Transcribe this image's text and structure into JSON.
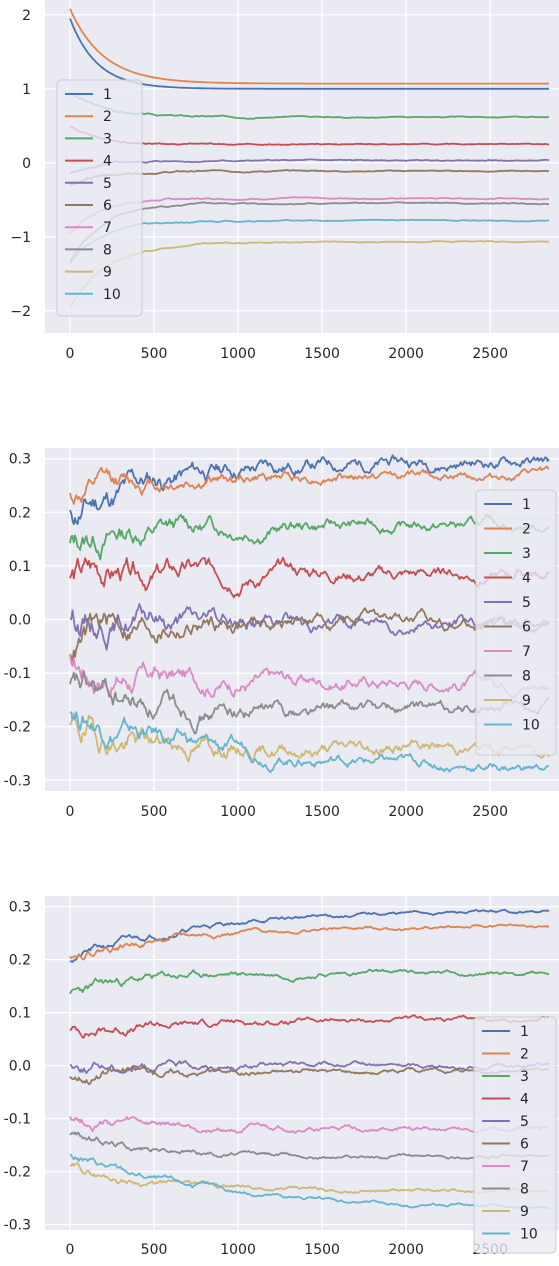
{
  "colors": {
    "background": "#eaeaf2",
    "grid": "#ffffff",
    "series": [
      "#4c72b0",
      "#dd8452",
      "#55a868",
      "#c44e52",
      "#8172b3",
      "#937860",
      "#da8bc3",
      "#8c8c8c",
      "#ccb974",
      "#64b5cd"
    ]
  },
  "chart_data": [
    {
      "type": "line",
      "x_range": [
        0,
        2850
      ],
      "xticks": [
        0,
        500,
        1000,
        1500,
        2000,
        2500
      ],
      "xtick_labels": [
        "0",
        "500",
        "1000",
        "1500",
        "2000",
        "2500"
      ],
      "ylim": [
        -2.3,
        2.2
      ],
      "yticks": [
        2,
        1,
        0,
        -1,
        -2
      ],
      "ytick_labels": [
        "2",
        "1",
        "0",
        "−1",
        "−2"
      ],
      "grid": true,
      "legend_position": "upper-left",
      "series": [
        {
          "name": "1",
          "start": 1.95,
          "end": 1.0,
          "tau": 160,
          "amp": 0.0,
          "seed": 1
        },
        {
          "name": "2",
          "start": 2.08,
          "end": 1.07,
          "tau": 200,
          "amp": 0.0,
          "seed": 2
        },
        {
          "name": "3",
          "start": 0.95,
          "end": 0.62,
          "tau": 200,
          "amp": 0.006,
          "seed": 3
        },
        {
          "name": "4",
          "start": 0.5,
          "end": 0.25,
          "tau": 180,
          "amp": 0.006,
          "seed": 4
        },
        {
          "name": "5",
          "start": -0.15,
          "end": 0.03,
          "tau": 200,
          "amp": 0.006,
          "seed": 5
        },
        {
          "name": "6",
          "start": -0.3,
          "end": -0.11,
          "tau": 200,
          "amp": 0.006,
          "seed": 6
        },
        {
          "name": "7",
          "start": -0.95,
          "end": -0.48,
          "tau": 170,
          "amp": 0.006,
          "seed": 7
        },
        {
          "name": "8",
          "start": -1.35,
          "end": -0.55,
          "tau": 190,
          "amp": 0.006,
          "seed": 8
        },
        {
          "name": "9",
          "start": -1.95,
          "end": -1.07,
          "tau": 230,
          "amp": 0.006,
          "seed": 9
        },
        {
          "name": "10",
          "start": -1.35,
          "end": -0.78,
          "tau": 190,
          "amp": 0.006,
          "seed": 10
        }
      ]
    },
    {
      "type": "line",
      "x_range": [
        0,
        2850
      ],
      "xticks": [
        0,
        500,
        1000,
        1500,
        2000,
        2500
      ],
      "xtick_labels": [
        "0",
        "500",
        "1000",
        "1500",
        "2000",
        "2500"
      ],
      "ylim": [
        -0.32,
        0.32
      ],
      "yticks": [
        0.3,
        0.2,
        0.1,
        0.0,
        -0.1,
        -0.2,
        -0.3
      ],
      "ytick_labels": [
        "0.3",
        "0.2",
        "0.1",
        "0.0",
        "-0.1",
        "-0.2",
        "-0.3"
      ],
      "grid": true,
      "legend_position": "right",
      "series": [
        {
          "name": "1",
          "start": 0.19,
          "end": 0.295,
          "tau": 500,
          "amp": 0.011,
          "seed": 11
        },
        {
          "name": "2",
          "start": 0.23,
          "end": 0.27,
          "tau": 500,
          "amp": 0.008,
          "seed": 12
        },
        {
          "name": "3",
          "start": 0.14,
          "end": 0.175,
          "tau": 300,
          "amp": 0.01,
          "seed": 13
        },
        {
          "name": "4",
          "start": 0.08,
          "end": 0.085,
          "tau": 300,
          "amp": 0.011,
          "seed": 14
        },
        {
          "name": "5",
          "start": 0.01,
          "end": -0.005,
          "tau": 300,
          "amp": 0.011,
          "seed": 15
        },
        {
          "name": "6",
          "start": -0.05,
          "end": -0.005,
          "tau": 200,
          "amp": 0.011,
          "seed": 16
        },
        {
          "name": "7",
          "start": -0.08,
          "end": -0.115,
          "tau": 300,
          "amp": 0.011,
          "seed": 17
        },
        {
          "name": "8",
          "start": -0.13,
          "end": -0.17,
          "tau": 300,
          "amp": 0.011,
          "seed": 18
        },
        {
          "name": "9",
          "start": -0.2,
          "end": -0.24,
          "tau": 300,
          "amp": 0.011,
          "seed": 19
        },
        {
          "name": "10",
          "start": -0.17,
          "end": -0.28,
          "tau": 900,
          "amp": 0.009,
          "seed": 20
        }
      ]
    },
    {
      "type": "line",
      "x_range": [
        0,
        2850
      ],
      "xticks": [
        0,
        500,
        1000,
        1500,
        2000,
        2500
      ],
      "xtick_labels": [
        "0",
        "500",
        "1000",
        "1500",
        "2000",
        "2500"
      ],
      "ylim": [
        -0.31,
        0.32
      ],
      "yticks": [
        0.3,
        0.2,
        0.1,
        0.0,
        -0.1,
        -0.2,
        -0.3
      ],
      "ytick_labels": [
        "0.3",
        "0.2",
        "0.1",
        "0.0",
        "-0.1",
        "-0.2",
        "-0.3"
      ],
      "grid": true,
      "legend_position": "right",
      "series": [
        {
          "name": "1",
          "start": 0.2,
          "end": 0.292,
          "tau": 700,
          "amp": 0.003,
          "seed": 21
        },
        {
          "name": "2",
          "start": 0.21,
          "end": 0.263,
          "tau": 700,
          "amp": 0.003,
          "seed": 22
        },
        {
          "name": "3",
          "start": 0.13,
          "end": 0.175,
          "tau": 350,
          "amp": 0.004,
          "seed": 23
        },
        {
          "name": "4",
          "start": 0.063,
          "end": 0.087,
          "tau": 700,
          "amp": 0.004,
          "seed": 24
        },
        {
          "name": "5",
          "start": 0.0,
          "end": 0.0,
          "tau": 300,
          "amp": 0.004,
          "seed": 25
        },
        {
          "name": "6",
          "start": -0.02,
          "end": -0.01,
          "tau": 200,
          "amp": 0.004,
          "seed": 26
        },
        {
          "name": "7",
          "start": -0.093,
          "end": -0.12,
          "tau": 300,
          "amp": 0.004,
          "seed": 27
        },
        {
          "name": "8",
          "start": -0.127,
          "end": -0.172,
          "tau": 500,
          "amp": 0.003,
          "seed": 28
        },
        {
          "name": "9",
          "start": -0.193,
          "end": -0.237,
          "tau": 500,
          "amp": 0.003,
          "seed": 29
        },
        {
          "name": "10",
          "start": -0.17,
          "end": -0.272,
          "tau": 900,
          "amp": 0.003,
          "seed": 30
        }
      ]
    }
  ]
}
